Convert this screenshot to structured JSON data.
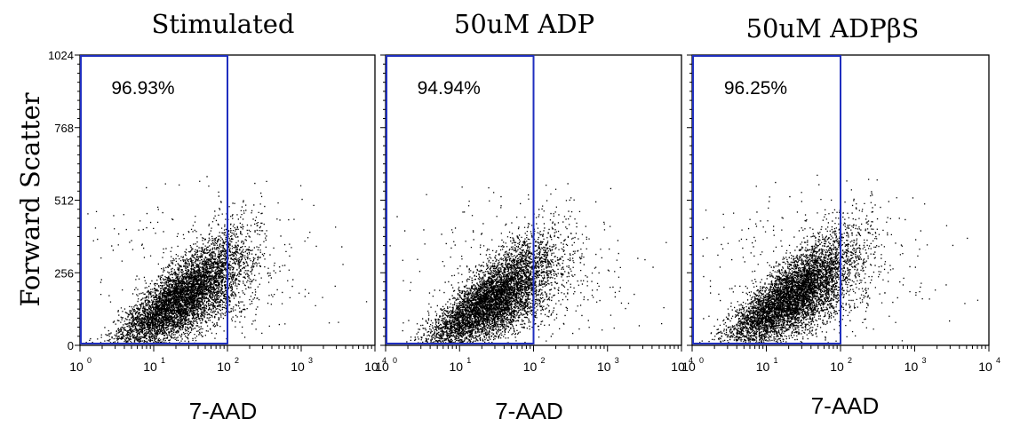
{
  "chart_data": {
    "type": "scatter",
    "ylabel": "Forward Scatter",
    "y_ticks": [
      "0",
      "256",
      "512",
      "768",
      "1024"
    ],
    "ylim": [
      0,
      1024
    ],
    "x_scale": "log",
    "xlim": [
      1,
      10000
    ],
    "x_ticks": [
      {
        "base": "10",
        "exp": "0"
      },
      {
        "base": "10",
        "exp": "1"
      },
      {
        "base": "10",
        "exp": "2"
      },
      {
        "base": "10",
        "exp": "3"
      },
      {
        "base": "10",
        "exp": "4"
      }
    ],
    "colors": {
      "gate": "#1f2fbf",
      "points": "#000000"
    },
    "panels": [
      {
        "title": "Stimulated",
        "xlabel": "7-AAD",
        "gate": {
          "x": [
            1,
            100
          ],
          "y": [
            0,
            1024
          ],
          "percent": "96.93%"
        },
        "cluster": {
          "x_center": 25,
          "y_center": 170,
          "x_spread_decades": 0.42,
          "y_spread": 75,
          "slope_per_decade": 160
        },
        "n_points": 6500
      },
      {
        "title": "50uM ADP",
        "xlabel": "7-AAD",
        "gate": {
          "x": [
            1,
            100
          ],
          "y": [
            0,
            1024
          ],
          "percent": "94.94%"
        },
        "cluster": {
          "x_center": 28,
          "y_center": 160,
          "x_spread_decades": 0.42,
          "y_spread": 75,
          "slope_per_decade": 160
        },
        "n_points": 6500
      },
      {
        "title": "50uM ADPβS",
        "xlabel": "7-AAD",
        "gate": {
          "x": [
            1,
            100
          ],
          "y": [
            0,
            1024
          ],
          "percent": "96.25%"
        },
        "cluster": {
          "x_center": 23,
          "y_center": 175,
          "x_spread_decades": 0.42,
          "y_spread": 75,
          "slope_per_decade": 160
        },
        "n_points": 6500
      }
    ]
  }
}
